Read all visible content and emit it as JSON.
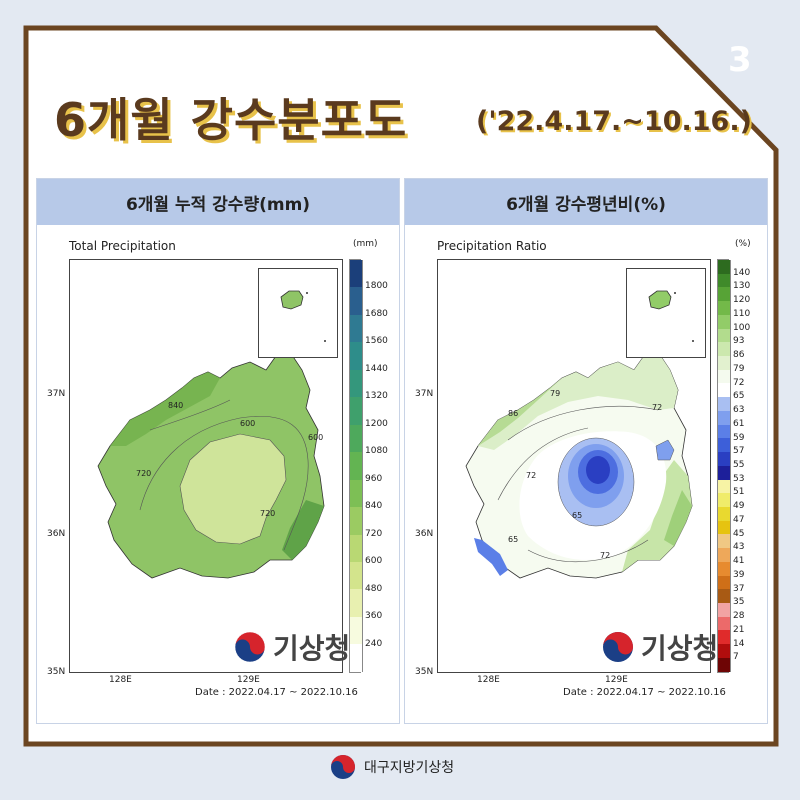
{
  "page_number": "3",
  "title": "6개월 강수분포도",
  "subtitle": "('22.4.17.~10.16.)",
  "footer_org": "대구지방기상청",
  "panels": {
    "left": {
      "header": "6개월 누적 강수량(mm)",
      "map_title": "Total Precipitation",
      "unit": "(mm)",
      "legend": [
        "1800",
        "1680",
        "1560",
        "1440",
        "1320",
        "1200",
        "1080",
        "960",
        "840",
        "720",
        "600",
        "480",
        "360",
        "240"
      ],
      "legend_colors": [
        "#1b3f7a",
        "#2a5f8e",
        "#2f7a92",
        "#2e8d8a",
        "#34977c",
        "#3fa06c",
        "#4ea95c",
        "#63b452",
        "#7dbf55",
        "#9bcb62",
        "#b9d873",
        "#d3e48c",
        "#e8f0b0",
        "#f7fbdf",
        "#ffffff"
      ],
      "contour_labels": [
        "840",
        "600",
        "720",
        "720",
        "600"
      ],
      "lat_labels": [
        "37N",
        "36N",
        "35N"
      ],
      "lon_labels": [
        "128E",
        "129E"
      ],
      "date": "Date : 2022.04.17 ~ 2022.10.16",
      "logo_text": "기상청"
    },
    "right": {
      "header": "6개월 강수평년비(%)",
      "map_title": "Precipitation Ratio",
      "unit": "(%)",
      "legend": [
        "140",
        "130",
        "120",
        "110",
        "100",
        "93",
        "86",
        "79",
        "72",
        "65",
        "63",
        "61",
        "59",
        "57",
        "55",
        "53",
        "51",
        "49",
        "47",
        "45",
        "43",
        "41",
        "39",
        "37",
        "35",
        "28",
        "21",
        "14",
        "7"
      ],
      "legend_colors": [
        "#2d6b1f",
        "#3f8a2a",
        "#57a336",
        "#73b949",
        "#92cc68",
        "#b2dc8d",
        "#cce8ae",
        "#e2f1cf",
        "#f4faee",
        "#ffffff",
        "#a9bff2",
        "#7f9fee",
        "#5b7fe7",
        "#3d5fd9",
        "#2a3fc2",
        "#1d1f9a",
        "#f7f3a5",
        "#f0ec6a",
        "#e9d92f",
        "#e6c310",
        "#f0c884",
        "#eea85a",
        "#e78b2f",
        "#cf6f18",
        "#a85a14",
        "#f2a3a3",
        "#ec6a6a",
        "#e02b2b",
        "#b10d0d",
        "#6e0505"
      ],
      "contour_labels": [
        "79",
        "86",
        "72",
        "72",
        "65",
        "65",
        "72"
      ],
      "lat_labels": [
        "37N",
        "36N",
        "35N"
      ],
      "lon_labels": [
        "128E",
        "129E"
      ],
      "date": "Date : 2022.04.17 ~ 2022.10.16",
      "logo_text": "기상청"
    }
  }
}
